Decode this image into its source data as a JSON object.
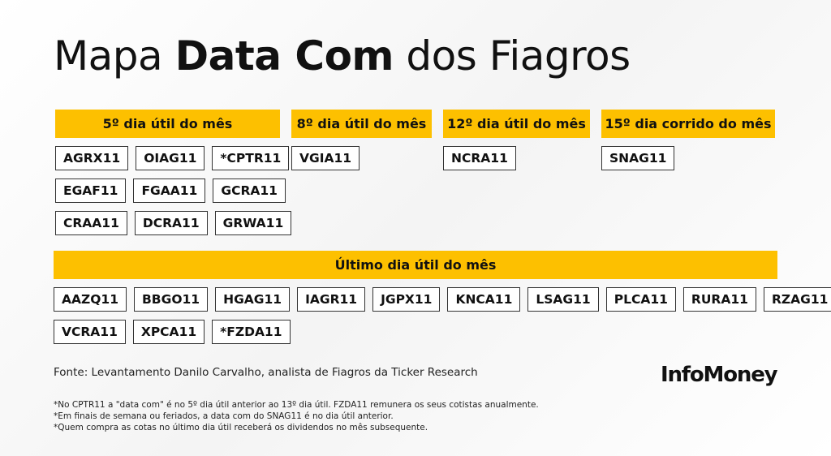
{
  "title": {
    "prefix": "Mapa",
    "bold": "Data Com",
    "suffix": "dos Fiagros"
  },
  "groups": [
    {
      "header": "5º dia útil do mês",
      "rows": [
        [
          "AGRX11",
          "OIAG11",
          "*CPTR11"
        ],
        [
          "EGAF11",
          "FGAA11",
          "GCRA11"
        ],
        [
          "CRAA11",
          "DCRA11",
          "GRWA11"
        ]
      ]
    },
    {
      "header": "8º dia útil do mês",
      "rows": [
        [
          "VGIA11"
        ]
      ]
    },
    {
      "header": "12º dia útil do mês",
      "rows": [
        [
          "NCRA11"
        ]
      ]
    },
    {
      "header": "15º dia corrido do mês",
      "rows": [
        [
          "SNAG11"
        ]
      ]
    }
  ],
  "last_group": {
    "header": "Último dia útil do mês",
    "rows": [
      [
        "AAZQ11",
        "BBGO11",
        "HGAG11",
        "IAGR11",
        "JGPX11",
        "KNCA11",
        "LSAG11",
        "PLCA11",
        "RURA11",
        "RZAG11"
      ],
      [
        "VCRA11",
        "XPCA11",
        "*FZDA11"
      ]
    ]
  },
  "source": "Fonte: Levantamento Danilo Carvalho, analista de Fiagros da Ticker Research",
  "brand": "InfoMoney",
  "notes": [
    "*No CPTR11 a \"data com\" é no 5º dia útil anterior ao 13º dia útil. FZDA11 remunera os seus cotistas anualmente.",
    "*Em finais de semana ou feriados, a data com do SNAG11 é no dia útil anterior.",
    "*Quem compra as cotas no último dia útil receberá os dividendos no mês subsequente."
  ]
}
